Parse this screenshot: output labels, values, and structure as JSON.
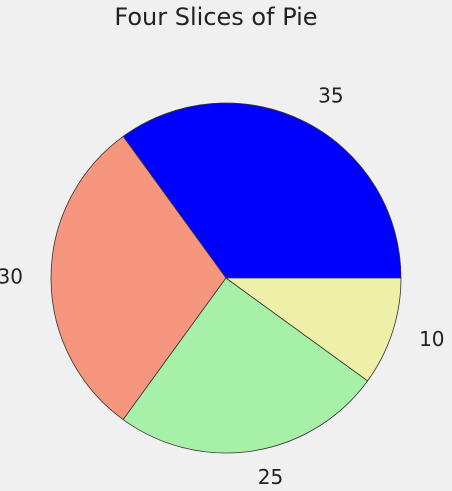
{
  "chart_data": {
    "type": "pie",
    "title": "Four Slices of Pie",
    "values": [
      35,
      30,
      25,
      10
    ],
    "colors": [
      "#0000ff",
      "#f7967e",
      "#a6f0a8",
      "#eef0a8"
    ],
    "start_angle": 0,
    "counterclock": true
  }
}
